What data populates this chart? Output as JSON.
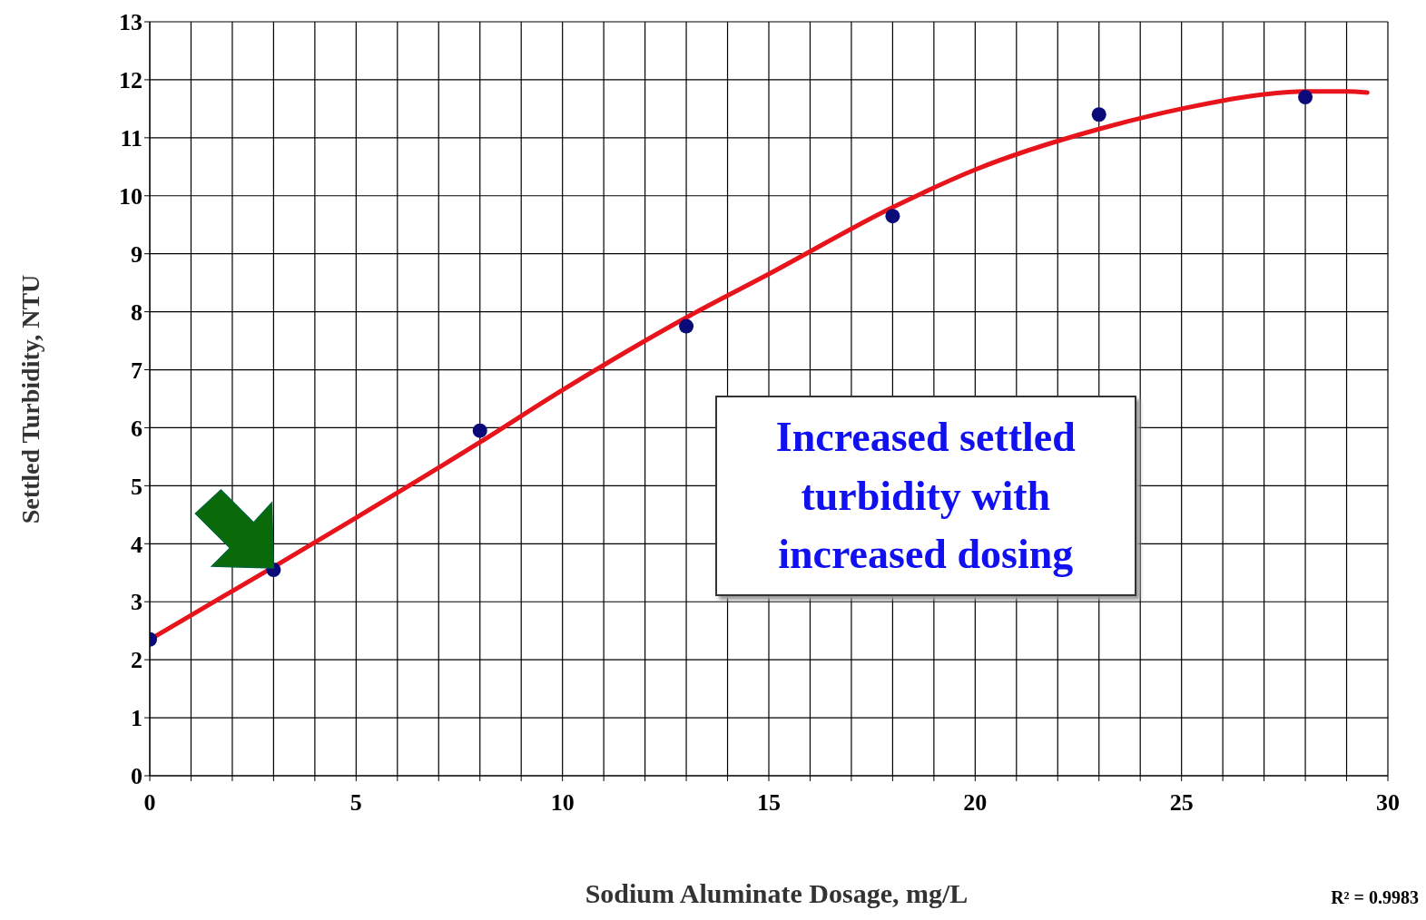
{
  "chart_data": {
    "type": "scatter",
    "xlabel": "Sodium Aluminate Dosage, mg/L",
    "ylabel": "Settled Turbidity, NTU",
    "series": [
      {
        "marker": "circle",
        "color": "#0a0a78",
        "x": [
          0,
          3,
          8,
          13,
          18,
          23,
          28
        ],
        "values": [
          2.35,
          3.55,
          5.95,
          7.75,
          9.65,
          11.4,
          11.7
        ]
      },
      {
        "type": "line",
        "marker": "none",
        "color": "#e8141b",
        "x": [
          0,
          3,
          5,
          8,
          10,
          13,
          15,
          18,
          20,
          23,
          25,
          27,
          28,
          29,
          29.5
        ],
        "values": [
          2.35,
          3.6,
          4.45,
          5.75,
          6.65,
          7.9,
          8.65,
          9.8,
          10.45,
          11.15,
          11.5,
          11.75,
          11.8,
          11.8,
          11.78
        ]
      }
    ],
    "xlim": [
      0,
      30
    ],
    "xticks": [
      0,
      {
        "value": 1,
        "label": null
      },
      {
        "value": 2,
        "label": null
      },
      {
        "value": 3,
        "label": null
      },
      {
        "value": 4,
        "label": null
      },
      5,
      {
        "value": 6,
        "label": null
      },
      {
        "value": 7,
        "label": null
      },
      {
        "value": 8,
        "label": null
      },
      {
        "value": 9,
        "label": null
      },
      10,
      {
        "value": 11,
        "label": null
      },
      {
        "value": 12,
        "label": null
      },
      {
        "value": 13,
        "label": null
      },
      {
        "value": 14,
        "label": null
      },
      15,
      {
        "value": 16,
        "label": null
      },
      {
        "value": 17,
        "label": null
      },
      {
        "value": 18,
        "label": null
      },
      {
        "value": 19,
        "label": null
      },
      20,
      {
        "value": 21,
        "label": null
      },
      {
        "value": 22,
        "label": null
      },
      {
        "value": 23,
        "label": null
      },
      {
        "value": 24,
        "label": null
      },
      25,
      {
        "value": 26,
        "label": null
      },
      {
        "value": 27,
        "label": null
      },
      {
        "value": 28,
        "label": null
      },
      {
        "value": 29,
        "label": null
      },
      30
    ],
    "ylim": [
      0,
      13
    ],
    "yticks": [
      0,
      1,
      2,
      3,
      4,
      5,
      6,
      7,
      8,
      9,
      10,
      11,
      12,
      13
    ],
    "grid": true,
    "legend": false,
    "annotations": [
      "Increased settled turbidity with increased dosing",
      "R² = 0.9983"
    ]
  }
}
